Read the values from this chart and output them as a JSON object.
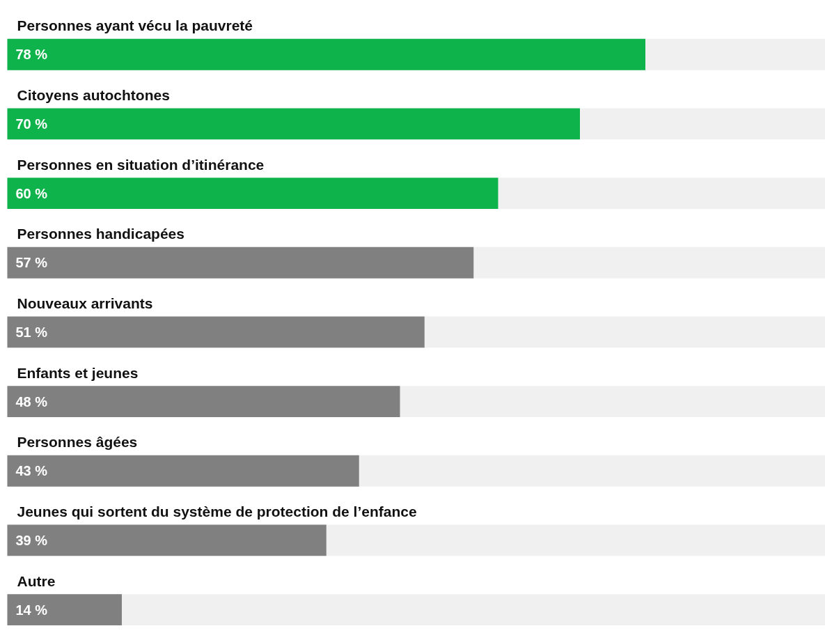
{
  "chart_data": {
    "type": "bar",
    "orientation": "horizontal",
    "categories": [
      "Personnes ayant vécu la pauvreté",
      "Citoyens autochtones",
      "Personnes en situation d’itinérance",
      "Personnes handicapées",
      "Nouveaux arrivants",
      "Enfants et jeunes",
      "Personnes âgées",
      "Jeunes qui sortent du système de protection de l’enfance",
      "Autre"
    ],
    "values": [
      78,
      70,
      60,
      57,
      51,
      48,
      43,
      39,
      14
    ],
    "value_labels": [
      "78 %",
      "70 %",
      "60 %",
      "57 %",
      "51 %",
      "48 %",
      "43 %",
      "39 %",
      "14 %"
    ],
    "colors": [
      "#0fb34c",
      "#0fb34c",
      "#0fb34c",
      "#808080",
      "#808080",
      "#808080",
      "#808080",
      "#808080",
      "#808080"
    ],
    "xlim": [
      0,
      100
    ],
    "tick_labels": false,
    "grid": false
  }
}
